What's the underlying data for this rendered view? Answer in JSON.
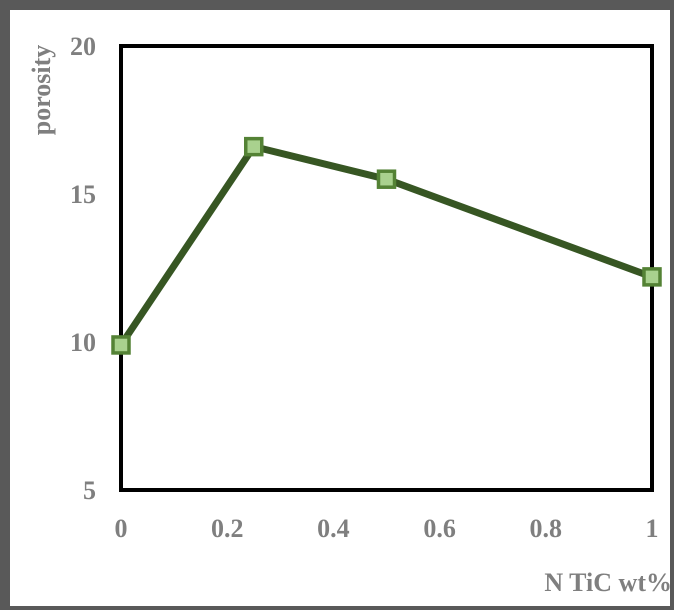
{
  "chart_data": {
    "type": "line",
    "title": "",
    "xlabel": "N TiC wt%",
    "ylabel": "porosity",
    "xlim": [
      0,
      1
    ],
    "ylim": [
      5,
      20
    ],
    "x_ticks": [
      0,
      0.2,
      0.4,
      0.6,
      0.8,
      1
    ],
    "x_tick_labels": [
      "0",
      "0.2",
      "0.4",
      "0.6",
      "0.8",
      "1"
    ],
    "y_ticks": [
      5,
      10,
      15,
      20
    ],
    "y_tick_labels": [
      "5",
      "10",
      "15",
      "20"
    ],
    "grid": false,
    "legend": "none",
    "series": [
      {
        "x": [
          0,
          0.25,
          0.5,
          1
        ],
        "values": [
          9.9,
          16.6,
          15.5,
          12.2
        ],
        "line_color": "#375623",
        "marker_fill": "#a9d18e",
        "marker_stroke": "#548235"
      }
    ],
    "colors": {
      "axis_text": "#7f7f7f",
      "plot_border": "#000000",
      "outer_border": "#595959"
    }
  }
}
